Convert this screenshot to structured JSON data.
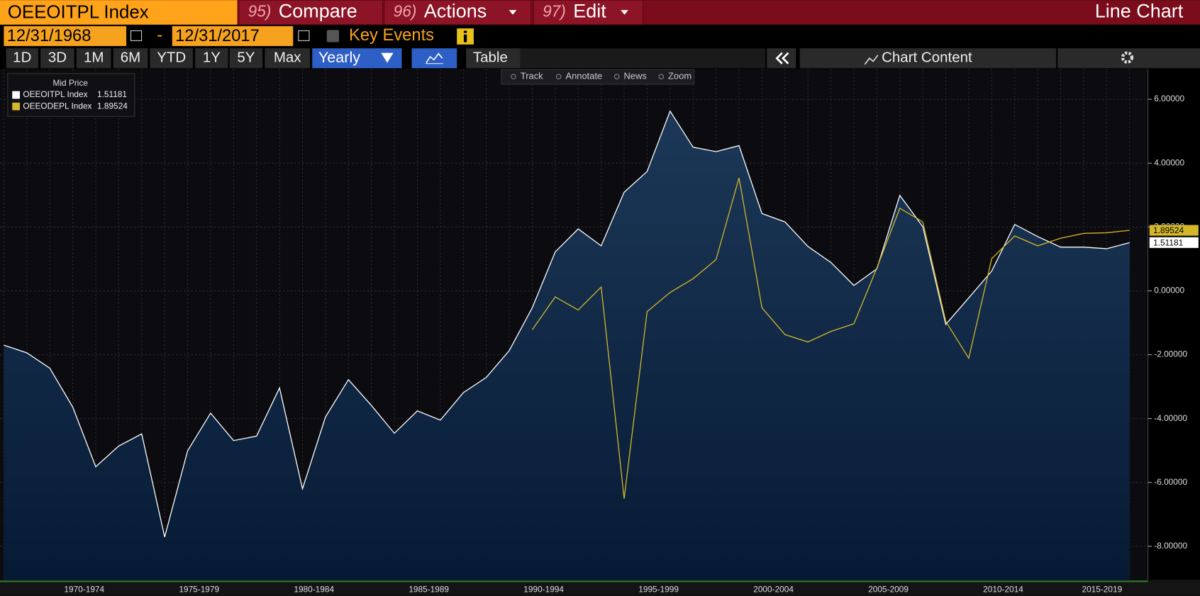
{
  "toolbar": {
    "security": "OEEOITPL Index",
    "menus": [
      {
        "number": "95)",
        "label": "Compare"
      },
      {
        "number": "96)",
        "label": "Actions"
      },
      {
        "number": "97)",
        "label": "Edit"
      }
    ],
    "view": "Line Chart"
  },
  "date_range": {
    "start": "12/31/1968",
    "separator": "-",
    "end": "12/31/2017",
    "key_events": "Key Events"
  },
  "periods": [
    "1D",
    "3D",
    "1M",
    "6M",
    "YTD",
    "1Y",
    "5Y",
    "Max"
  ],
  "frequency": "Yearly",
  "table": "Table",
  "chart_content": "Chart Content",
  "chart_tools": [
    "Track",
    "Annotate",
    "News",
    "Zoom"
  ],
  "chart_data": {
    "type": "line",
    "legend_title": "Mid Price",
    "x": [
      1968,
      1969,
      1970,
      1971,
      1972,
      1973,
      1974,
      1975,
      1976,
      1977,
      1978,
      1979,
      1980,
      1981,
      1982,
      1983,
      1984,
      1985,
      1986,
      1987,
      1988,
      1989,
      1990,
      1991,
      1992,
      1993,
      1994,
      1995,
      1996,
      1997,
      1998,
      1999,
      2000,
      2001,
      2002,
      2003,
      2004,
      2005,
      2006,
      2007,
      2008,
      2009,
      2010,
      2011,
      2012,
      2013,
      2014,
      2015,
      2016,
      2017
    ],
    "series": [
      {
        "name": "OEEOITPL Index",
        "color": "#ffffff",
        "fill": true,
        "values": [
          -1.7,
          -1.94,
          -2.42,
          -3.64,
          -5.51,
          -4.86,
          -4.48,
          -7.71,
          -5.01,
          -3.83,
          -4.69,
          -4.55,
          -3.04,
          -6.2,
          -3.95,
          -2.78,
          -3.59,
          -4.46,
          -3.76,
          -4.05,
          -3.19,
          -2.71,
          -1.87,
          -0.53,
          1.22,
          1.94,
          1.41,
          3.09,
          3.74,
          5.63,
          4.5,
          4.36,
          4.55,
          2.42,
          2.16,
          1.39,
          0.89,
          0.17,
          0.69,
          2.99,
          2.01,
          -1.05,
          -0.22,
          0.62,
          2.08,
          1.7,
          1.37,
          1.37,
          1.32,
          1.51181
        ]
      },
      {
        "name": "OEEODEPL Index",
        "color": "#d4b82a",
        "fill": false,
        "values": [
          null,
          null,
          null,
          null,
          null,
          null,
          null,
          null,
          null,
          null,
          null,
          null,
          null,
          null,
          null,
          null,
          null,
          null,
          null,
          null,
          null,
          null,
          null,
          -1.22,
          -0.19,
          -0.6,
          0.12,
          -6.51,
          -0.65,
          -0.05,
          0.38,
          0.98,
          3.54,
          -0.53,
          -1.37,
          -1.6,
          -1.27,
          -1.03,
          0.72,
          2.59,
          2.16,
          -0.96,
          -2.11,
          1.01,
          1.72,
          1.41,
          1.65,
          1.8,
          1.82,
          1.89524
        ]
      }
    ],
    "xlim": [
      1968,
      2017.8
    ],
    "xticks": [
      {
        "value": 1971.5,
        "label": "1970-1974"
      },
      {
        "value": 1976.5,
        "label": "1975-1979"
      },
      {
        "value": 1981.5,
        "label": "1980-1984"
      },
      {
        "value": 1986.5,
        "label": "1985-1989"
      },
      {
        "value": 1991.5,
        "label": "1990-1994"
      },
      {
        "value": 1996.5,
        "label": "1995-1999"
      },
      {
        "value": 2001.5,
        "label": "2000-2004"
      },
      {
        "value": 2006.5,
        "label": "2005-2009"
      },
      {
        "value": 2011.5,
        "label": "2010-2014"
      },
      {
        "value": 2015.8,
        "label": "2015-2019"
      }
    ],
    "ylim": [
      -9.05,
      6.95
    ],
    "yticks": [
      {
        "value": 6,
        "label": "6.00000"
      },
      {
        "value": 4,
        "label": "4.00000"
      },
      {
        "value": 2,
        "label": "2.00000"
      },
      {
        "value": 0,
        "label": "0.00000"
      },
      {
        "value": -2,
        "label": "-2.00000"
      },
      {
        "value": -4,
        "label": "-4.00000"
      },
      {
        "value": -6,
        "label": "-6.00000"
      },
      {
        "value": -8,
        "label": "-8.00000"
      }
    ],
    "grid": true
  }
}
